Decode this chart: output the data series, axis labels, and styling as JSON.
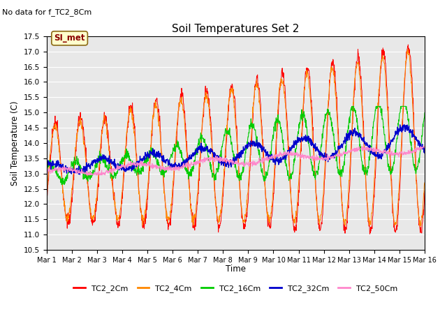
{
  "title": "Soil Temperatures Set 2",
  "no_data_text": "No data for f_TC2_8Cm",
  "annotation_text": "SI_met",
  "ylabel": "Soil Temperature (C)",
  "xlabel": "Time",
  "ylim": [
    10.5,
    17.5
  ],
  "yticks": [
    10.5,
    11.0,
    11.5,
    12.0,
    12.5,
    13.0,
    13.5,
    14.0,
    14.5,
    15.0,
    15.5,
    16.0,
    16.5,
    17.0,
    17.5
  ],
  "xtick_labels": [
    "Mar 1",
    "Mar 2",
    "Mar 3",
    "Mar 4",
    "Mar 5",
    "Mar 6",
    "Mar 7",
    "Mar 8",
    "Mar 9",
    "Mar 10",
    "Mar 11",
    "Mar 12",
    "Mar 13",
    "Mar 14",
    "Mar 15",
    "Mar 16"
  ],
  "line_colors": {
    "TC2_2Cm": "#ff0000",
    "TC2_4Cm": "#ff8800",
    "TC2_16Cm": "#00cc00",
    "TC2_32Cm": "#0000cc",
    "TC2_50Cm": "#ff88cc"
  },
  "n_points": 1440,
  "days": 15
}
